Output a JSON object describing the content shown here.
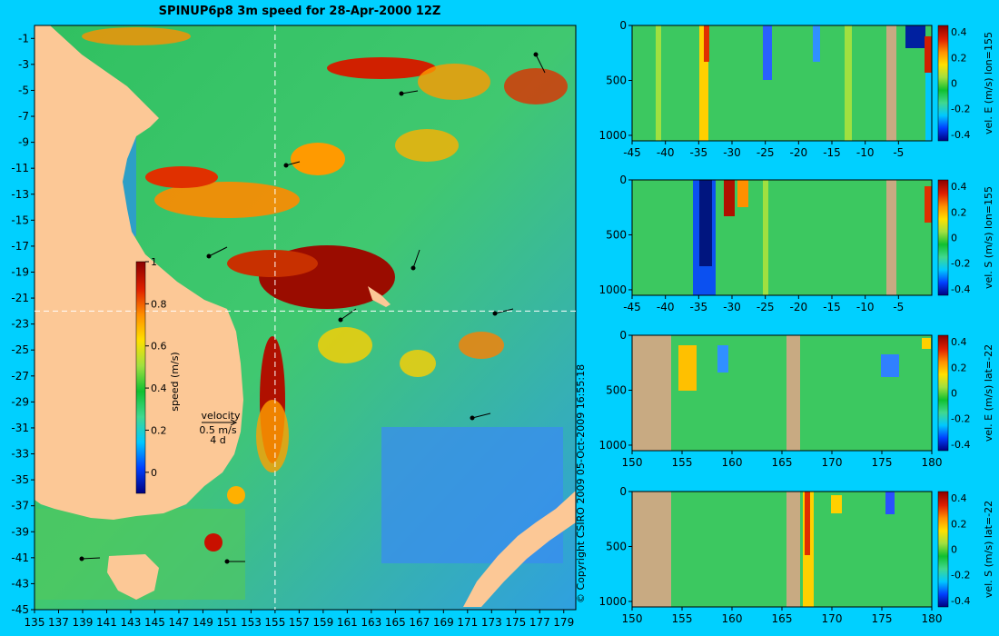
{
  "title": "SPINUP6p8 3m speed for 28-Apr-2000 12Z",
  "copyright": "© Copyright CSIRO 2009   05-Oct-2009 16:55:18",
  "velocity_legend": {
    "label": "velocity",
    "speed": "0.5 m/s",
    "duration": "4 d"
  },
  "colors": {
    "background": "#00d0ff",
    "land": "#fcc896",
    "section_land": "#c8aa82",
    "crosshair": "#ffffff",
    "colormap": [
      "#00007f",
      "#0040ff",
      "#00c8ff",
      "#40d890",
      "#10c030",
      "#a0e040",
      "#ffe000",
      "#ff9000",
      "#e02000",
      "#8b0000"
    ]
  },
  "chart_data": [
    {
      "type": "heatmap",
      "name": "map",
      "title": "SPINUP6p8 3m speed for 28-Apr-2000 12Z",
      "xlabel": "",
      "ylabel": "",
      "xlim": [
        135,
        180
      ],
      "ylim": [
        -45,
        0
      ],
      "xticks": [
        135,
        137,
        139,
        141,
        143,
        145,
        147,
        149,
        151,
        153,
        155,
        157,
        159,
        161,
        163,
        165,
        167,
        169,
        171,
        173,
        175,
        177,
        179
      ],
      "yticks": [
        -1,
        -3,
        -5,
        -7,
        -9,
        -11,
        -13,
        -15,
        -17,
        -19,
        -21,
        -23,
        -25,
        -27,
        -29,
        -31,
        -33,
        -35,
        -37,
        -39,
        -41,
        -43,
        -45
      ],
      "crosshair": {
        "lon": 155,
        "lat": -22
      },
      "colorbar": {
        "label": "speed (m/s)",
        "ticks": [
          "0",
          "0.2",
          "0.4",
          "0.6",
          "0.8",
          "1"
        ],
        "range": [
          -0.1,
          1
        ]
      }
    },
    {
      "type": "heatmap",
      "name": "section-1",
      "colorbar_label": "vel. E (m/s) lon=155",
      "xticks": [
        "-45",
        "-40",
        "-35",
        "-30",
        "-25",
        "-20",
        "-15",
        "-10",
        "-5"
      ],
      "yticks": [
        "0",
        "500",
        "1000"
      ],
      "xlim": [
        -45,
        0
      ],
      "ylim": [
        0,
        1050
      ],
      "colorbar_ticks": [
        "0.4",
        "0.2",
        "0",
        "-0.2",
        "-0.4"
      ],
      "colorbar_range": [
        -0.45,
        0.45
      ]
    },
    {
      "type": "heatmap",
      "name": "section-2",
      "colorbar_label": "vel. S (m/s) lon=155",
      "xticks": [
        "-45",
        "-40",
        "-35",
        "-30",
        "-25",
        "-20",
        "-15",
        "-10",
        "-5"
      ],
      "yticks": [
        "0",
        "500",
        "1000"
      ],
      "xlim": [
        -45,
        0
      ],
      "ylim": [
        0,
        1050
      ],
      "colorbar_ticks": [
        "0.4",
        "0.2",
        "0",
        "-0.2",
        "-0.4"
      ],
      "colorbar_range": [
        -0.45,
        0.45
      ]
    },
    {
      "type": "heatmap",
      "name": "section-3",
      "colorbar_label": "vel. E (m/s) lat=-22",
      "xticks": [
        "150",
        "155",
        "160",
        "165",
        "170",
        "175",
        "180"
      ],
      "yticks": [
        "0",
        "500",
        "1000"
      ],
      "xlim": [
        150,
        180
      ],
      "ylim": [
        0,
        1050
      ],
      "colorbar_ticks": [
        "0.4",
        "0.2",
        "0",
        "-0.2",
        "-0.4"
      ],
      "colorbar_range": [
        -0.45,
        0.45
      ]
    },
    {
      "type": "heatmap",
      "name": "section-4",
      "colorbar_label": "vel. S (m/s) lat=-22",
      "xticks": [
        "150",
        "155",
        "160",
        "165",
        "170",
        "175",
        "180"
      ],
      "yticks": [
        "0",
        "500",
        "1000"
      ],
      "xlim": [
        150,
        180
      ],
      "ylim": [
        0,
        1050
      ],
      "colorbar_ticks": [
        "0.4",
        "0.2",
        "0",
        "-0.2",
        "-0.4"
      ],
      "colorbar_range": [
        -0.45,
        0.45
      ]
    }
  ]
}
